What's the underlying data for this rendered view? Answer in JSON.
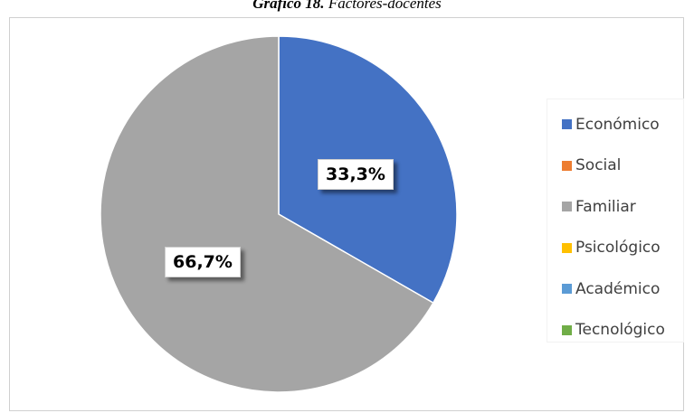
{
  "title": {
    "bold": "Gráfico 18.",
    "rest": " Factores-docentes"
  },
  "chart_data": {
    "type": "pie",
    "title": "Gráfico 18. Factores-docentes",
    "categories": [
      "Económico",
      "Social",
      "Familiar",
      "Psicológico",
      "Académico",
      "Tecnológico"
    ],
    "values": [
      33.3,
      0,
      66.7,
      0,
      0,
      0
    ],
    "colors": [
      "#4472C4",
      "#ED7D31",
      "#A5A5A5",
      "#FFC000",
      "#5B9BD5",
      "#70AD47"
    ],
    "data_labels": [
      "33,3%",
      "",
      "66,7%",
      "",
      "",
      ""
    ],
    "legend_position": "right"
  }
}
